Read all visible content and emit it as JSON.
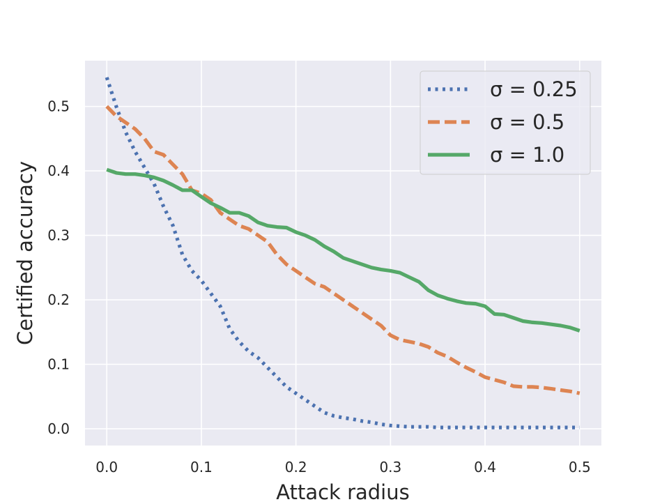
{
  "chart_data": {
    "type": "line",
    "xlabel": "Attack radius",
    "ylabel": "Certified accuracy",
    "xlim": [
      -0.023,
      0.523
    ],
    "ylim": [
      -0.026,
      0.571
    ],
    "xticks": [
      0.0,
      0.1,
      0.2,
      0.3,
      0.4,
      0.5
    ],
    "xtick_labels": [
      "0.0",
      "0.1",
      "0.2",
      "0.3",
      "0.4",
      "0.5"
    ],
    "yticks": [
      0.0,
      0.1,
      0.2,
      0.3,
      0.4,
      0.5
    ],
    "ytick_labels": [
      "0.0",
      "0.1",
      "0.2",
      "0.3",
      "0.4",
      "0.5"
    ],
    "grid": true,
    "legend_position": "top-right",
    "series": [
      {
        "name": "σ = 0.25",
        "color": "#4c72b0",
        "style": "dotted",
        "x": [
          0.0,
          0.01,
          0.02,
          0.03,
          0.04,
          0.05,
          0.06,
          0.07,
          0.08,
          0.09,
          0.1,
          0.11,
          0.12,
          0.13,
          0.14,
          0.15,
          0.16,
          0.17,
          0.18,
          0.19,
          0.2,
          0.21,
          0.22,
          0.23,
          0.24,
          0.25,
          0.26,
          0.27,
          0.28,
          0.29,
          0.3,
          0.31,
          0.32,
          0.33,
          0.34,
          0.35,
          0.36,
          0.37,
          0.38,
          0.39,
          0.4,
          0.41,
          0.42,
          0.43,
          0.44,
          0.45,
          0.46,
          0.47,
          0.48,
          0.49,
          0.5
        ],
        "y": [
          0.545,
          0.5,
          0.46,
          0.43,
          0.405,
          0.38,
          0.345,
          0.315,
          0.27,
          0.245,
          0.23,
          0.21,
          0.19,
          0.155,
          0.135,
          0.12,
          0.11,
          0.095,
          0.08,
          0.065,
          0.055,
          0.045,
          0.035,
          0.025,
          0.02,
          0.017,
          0.015,
          0.012,
          0.01,
          0.007,
          0.005,
          0.004,
          0.003,
          0.003,
          0.003,
          0.002,
          0.002,
          0.002,
          0.002,
          0.002,
          0.002,
          0.002,
          0.002,
          0.002,
          0.002,
          0.002,
          0.002,
          0.002,
          0.002,
          0.002,
          0.002
        ]
      },
      {
        "name": "σ = 0.5",
        "color": "#dd8452",
        "style": "dashed",
        "x": [
          0.0,
          0.01,
          0.02,
          0.03,
          0.04,
          0.05,
          0.06,
          0.07,
          0.08,
          0.09,
          0.1,
          0.11,
          0.12,
          0.13,
          0.14,
          0.15,
          0.16,
          0.17,
          0.18,
          0.19,
          0.2,
          0.21,
          0.22,
          0.23,
          0.24,
          0.25,
          0.26,
          0.27,
          0.28,
          0.29,
          0.3,
          0.31,
          0.32,
          0.33,
          0.34,
          0.35,
          0.36,
          0.37,
          0.38,
          0.39,
          0.4,
          0.41,
          0.42,
          0.43,
          0.44,
          0.45,
          0.46,
          0.47,
          0.48,
          0.49,
          0.5
        ],
        "y": [
          0.5,
          0.485,
          0.475,
          0.465,
          0.45,
          0.43,
          0.425,
          0.41,
          0.395,
          0.37,
          0.365,
          0.355,
          0.335,
          0.325,
          0.315,
          0.31,
          0.3,
          0.29,
          0.27,
          0.255,
          0.245,
          0.235,
          0.225,
          0.22,
          0.21,
          0.2,
          0.19,
          0.18,
          0.17,
          0.16,
          0.145,
          0.138,
          0.135,
          0.132,
          0.127,
          0.118,
          0.112,
          0.103,
          0.095,
          0.088,
          0.08,
          0.076,
          0.072,
          0.066,
          0.065,
          0.065,
          0.064,
          0.062,
          0.06,
          0.058,
          0.055
        ]
      },
      {
        "name": "σ = 1.0",
        "color": "#55a868",
        "style": "solid",
        "x": [
          0.0,
          0.01,
          0.02,
          0.03,
          0.04,
          0.05,
          0.06,
          0.07,
          0.08,
          0.09,
          0.1,
          0.11,
          0.12,
          0.13,
          0.14,
          0.15,
          0.16,
          0.17,
          0.18,
          0.19,
          0.2,
          0.21,
          0.22,
          0.23,
          0.24,
          0.25,
          0.26,
          0.27,
          0.28,
          0.29,
          0.3,
          0.31,
          0.32,
          0.33,
          0.34,
          0.35,
          0.36,
          0.37,
          0.38,
          0.39,
          0.4,
          0.41,
          0.42,
          0.43,
          0.44,
          0.45,
          0.46,
          0.47,
          0.48,
          0.49,
          0.5
        ],
        "y": [
          0.402,
          0.397,
          0.395,
          0.395,
          0.393,
          0.39,
          0.385,
          0.378,
          0.37,
          0.37,
          0.36,
          0.35,
          0.343,
          0.335,
          0.335,
          0.33,
          0.32,
          0.315,
          0.313,
          0.312,
          0.305,
          0.3,
          0.293,
          0.283,
          0.275,
          0.265,
          0.26,
          0.255,
          0.25,
          0.247,
          0.245,
          0.242,
          0.235,
          0.228,
          0.215,
          0.207,
          0.202,
          0.198,
          0.195,
          0.194,
          0.19,
          0.178,
          0.177,
          0.172,
          0.167,
          0.165,
          0.164,
          0.162,
          0.16,
          0.157,
          0.152
        ]
      }
    ]
  }
}
